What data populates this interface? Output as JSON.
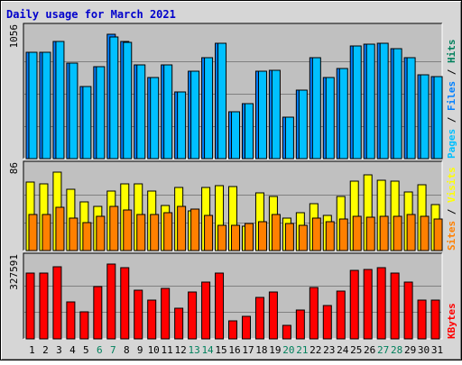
{
  "chart_data": {
    "type": "bar",
    "title": "Daily usage for March 2021",
    "colors": {
      "frame_bg": "#d6d6d6",
      "panel_bg": "#c0c0c0",
      "title": "#0000cc",
      "pages": "#00c0ff",
      "files": "#0080ff",
      "hits": "#00805c",
      "visits": "#ffff00",
      "sites": "#ff8000",
      "kbytes": "#ff0000",
      "weekday_label": "#000000",
      "weekend_label": "#00805c"
    },
    "categories": [
      "1",
      "2",
      "3",
      "4",
      "5",
      "6",
      "7",
      "8",
      "9",
      "10",
      "11",
      "12",
      "13",
      "14",
      "15",
      "16",
      "17",
      "18",
      "19",
      "20",
      "21",
      "22",
      "23",
      "24",
      "25",
      "26",
      "27",
      "28",
      "29",
      "30",
      "31"
    ],
    "weekend_days": [
      "6",
      "7",
      "13",
      "14",
      "20",
      "21",
      "27",
      "28"
    ],
    "panels": [
      {
        "id": "hits",
        "max_label": "1056",
        "ymax": 1056,
        "legend": [
          {
            "text": "Pages",
            "color": "#00c0ff"
          },
          {
            "text": "Files",
            "color": "#0080ff"
          },
          {
            "text": "Hits",
            "color": "#00805c"
          }
        ],
        "series": [
          {
            "key": "files",
            "offset": 0,
            "color": "#0080ff",
            "values": [
              900,
              900,
              995,
              810,
              610,
              780,
              1056,
              995,
              795,
              690,
              795,
              570,
              740,
              855,
              980,
              400,
              470,
              740,
              750,
              350,
              580,
              855,
              685,
              765,
              955,
              970,
              980,
              935,
              860,
              710,
              700
            ]
          },
          {
            "key": "pages",
            "offset": 1,
            "color": "#00c0ff",
            "values": [
              900,
              900,
              995,
              810,
              610,
              780,
              1035,
              985,
              795,
              690,
              795,
              570,
              740,
              855,
              980,
              400,
              470,
              740,
              750,
              350,
              580,
              855,
              685,
              765,
              955,
              970,
              980,
              935,
              860,
              710,
              700
            ]
          }
        ]
      },
      {
        "id": "visits",
        "max_label": "86",
        "ymax": 86,
        "legend": [
          {
            "text": "Sites",
            "color": "#ff8000"
          },
          {
            "text": "Visits",
            "color": "#ffff00"
          }
        ],
        "series": [
          {
            "key": "visits",
            "offset": 0,
            "color": "#ffff00",
            "values": [
              75,
              73,
              86,
              67,
              53,
              48,
              65,
              73,
              73,
              65,
              49,
              69,
              43,
              69,
              71,
              70,
              27,
              63,
              59,
              36,
              42,
              51,
              39,
              59,
              76,
              83,
              77,
              76,
              64,
              72,
              50
            ]
          },
          {
            "key": "sites",
            "offset": 1,
            "color": "#ff8000",
            "values": [
              40,
              40,
              47,
              36,
              31,
              38,
              48,
              44,
              40,
              40,
              42,
              48,
              45,
              39,
              28,
              28,
              30,
              32,
              40,
              30,
              28,
              36,
              32,
              35,
              38,
              37,
              38,
              38,
              40,
              38,
              35
            ]
          }
        ]
      },
      {
        "id": "kbytes",
        "max_label": "327591",
        "ymax": 327591,
        "legend": [
          {
            "text": "KBytes",
            "color": "#ff0000"
          }
        ],
        "series": [
          {
            "key": "kbytes",
            "offset": 0,
            "color": "#ff0000",
            "values": [
              290000,
              290000,
              315000,
              163000,
              120000,
              230000,
              327591,
              310000,
              215000,
              170000,
              220000,
              135000,
              205000,
              250000,
              290000,
              80000,
              100000,
              180000,
              205000,
              60000,
              125000,
              225000,
              145000,
              210000,
              300000,
              305000,
              310000,
              290000,
              250000,
              170000,
              170000
            ]
          }
        ]
      }
    ]
  }
}
